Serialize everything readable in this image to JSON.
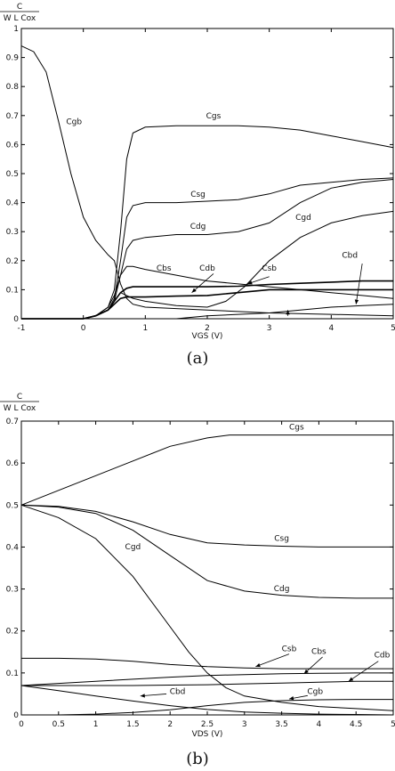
{
  "chart_data": [
    {
      "type": "line",
      "panel_label": "(a)",
      "ylabel_num": "C",
      "ylabel_den": "W L Cox",
      "xlabel": "VGS (V)",
      "xlim": [
        -1,
        5
      ],
      "ylim": [
        0,
        1
      ],
      "xticks": [
        -1,
        0,
        1,
        2,
        3,
        4,
        5
      ],
      "yticks": [
        0,
        0.1,
        0.2,
        0.3,
        0.4,
        0.5,
        0.6,
        0.7,
        0.8,
        0.9,
        1
      ],
      "xtick_labels": [
        "-1",
        "0",
        "1",
        "2",
        "3",
        "4",
        "5"
      ],
      "ytick_labels": [
        "0",
        "0.1",
        "0.2",
        "0.3",
        "0.4",
        "0.5",
        "0.6",
        "0.7",
        "0.8",
        "0.9",
        "1"
      ],
      "series": [
        {
          "name": "Cgb",
          "x": [
            -1,
            -0.8,
            -0.6,
            -0.4,
            -0.2,
            0,
            0.2,
            0.4,
            0.5,
            0.6,
            0.7,
            0.8,
            1,
            2,
            3,
            4,
            5
          ],
          "y": [
            0.94,
            0.92,
            0.85,
            0.68,
            0.5,
            0.35,
            0.27,
            0.22,
            0.2,
            0.12,
            0.07,
            0.05,
            0.04,
            0.03,
            0.02,
            0.015,
            0.01
          ]
        },
        {
          "name": "Cgs",
          "x": [
            -1,
            0,
            0.2,
            0.4,
            0.5,
            0.6,
            0.7,
            0.8,
            1,
            1.5,
            2,
            2.5,
            3,
            3.5,
            4,
            4.5,
            5
          ],
          "y": [
            0,
            0,
            0.01,
            0.04,
            0.1,
            0.3,
            0.55,
            0.64,
            0.66,
            0.665,
            0.665,
            0.665,
            0.66,
            0.65,
            0.63,
            0.61,
            0.59
          ]
        },
        {
          "name": "Csg",
          "x": [
            -1,
            0,
            0.2,
            0.4,
            0.5,
            0.6,
            0.7,
            0.8,
            1,
            1.5,
            2,
            2.5,
            3,
            3.5,
            4,
            4.5,
            5
          ],
          "y": [
            0,
            0,
            0.01,
            0.03,
            0.07,
            0.2,
            0.35,
            0.39,
            0.4,
            0.4,
            0.405,
            0.41,
            0.43,
            0.46,
            0.47,
            0.48,
            0.485
          ]
        },
        {
          "name": "Cdg",
          "x": [
            -1,
            0,
            0.2,
            0.4,
            0.5,
            0.6,
            0.7,
            0.8,
            1,
            1.5,
            2,
            2.5,
            3,
            3.5,
            4,
            4.5,
            5
          ],
          "y": [
            0,
            0,
            0.01,
            0.03,
            0.06,
            0.15,
            0.24,
            0.27,
            0.28,
            0.29,
            0.29,
            0.3,
            0.33,
            0.4,
            0.45,
            0.47,
            0.48
          ]
        },
        {
          "name": "Cgd",
          "x": [
            -1,
            0,
            0.2,
            0.4,
            0.5,
            0.6,
            0.7,
            0.8,
            1,
            1.5,
            2,
            2.3,
            2.6,
            3,
            3.5,
            4,
            4.5,
            5
          ],
          "y": [
            0,
            0,
            0.01,
            0.03,
            0.06,
            0.09,
            0.08,
            0.07,
            0.06,
            0.045,
            0.04,
            0.06,
            0.11,
            0.2,
            0.28,
            0.33,
            0.355,
            0.37
          ]
        },
        {
          "name": "Cbs",
          "x": [
            -1,
            0,
            0.2,
            0.4,
            0.5,
            0.6,
            0.7,
            0.8,
            1,
            1.5,
            2,
            2.5,
            3,
            3.5,
            4,
            4.5,
            5
          ],
          "y": [
            0,
            0,
            0.01,
            0.04,
            0.08,
            0.15,
            0.18,
            0.18,
            0.17,
            0.15,
            0.13,
            0.12,
            0.11,
            0.1,
            0.09,
            0.08,
            0.07
          ]
        },
        {
          "name": "Cdb",
          "x": [
            -1,
            0,
            0.2,
            0.4,
            0.5,
            0.6,
            0.7,
            0.8,
            1,
            1.5,
            2,
            2.5,
            3,
            3.5,
            4,
            4.5,
            5
          ],
          "y": [
            0,
            0,
            0.01,
            0.03,
            0.06,
            0.09,
            0.105,
            0.11,
            0.11,
            0.11,
            0.11,
            0.112,
            0.118,
            0.122,
            0.126,
            0.13,
            0.13
          ]
        },
        {
          "name": "Csb",
          "x": [
            -1,
            0,
            0.2,
            0.4,
            0.5,
            0.6,
            0.7,
            0.8,
            1,
            1.5,
            2,
            2.5,
            3,
            3.5,
            4,
            4.5,
            5
          ],
          "y": [
            0,
            0,
            0.01,
            0.03,
            0.05,
            0.07,
            0.075,
            0.075,
            0.075,
            0.078,
            0.08,
            0.09,
            0.1,
            0.1,
            0.1,
            0.1,
            0.1
          ]
        },
        {
          "name": "Cbd",
          "x": [
            -1,
            0,
            0.5,
            1,
            1.5,
            2,
            2.5,
            3,
            3.5,
            4,
            4.5,
            5
          ],
          "y": [
            0,
            0,
            0,
            0,
            0,
            0.01,
            0.015,
            0.02,
            0.03,
            0.04,
            0.045,
            0.05
          ]
        }
      ],
      "labels": [
        {
          "text": "Cgb",
          "x": -0.15,
          "y": 0.67
        },
        {
          "text": "Cgs",
          "x": 2.1,
          "y": 0.69
        },
        {
          "text": "Csg",
          "x": 1.85,
          "y": 0.42
        },
        {
          "text": "Cdg",
          "x": 1.85,
          "y": 0.31
        },
        {
          "text": "Cgd",
          "x": 3.55,
          "y": 0.34
        },
        {
          "text": "Cbs",
          "x": 1.3,
          "y": 0.165
        },
        {
          "text": "Cdb",
          "x": 2.0,
          "y": 0.165
        },
        {
          "text": "Csb",
          "x": 3.0,
          "y": 0.165
        },
        {
          "text": "Cbd",
          "x": 4.3,
          "y": 0.21
        }
      ],
      "arrows": [
        {
          "from": [
            2.1,
            0.155
          ],
          "to": [
            1.75,
            0.09
          ]
        },
        {
          "from": [
            3.0,
            0.145
          ],
          "to": [
            2.65,
            0.12
          ]
        },
        {
          "from": [
            4.5,
            0.19
          ],
          "to": [
            4.4,
            0.05
          ]
        },
        {
          "from": [
            3.3,
            0.01
          ],
          "to": [
            3.3,
            0.03
          ]
        }
      ]
    },
    {
      "type": "line",
      "panel_label": "(b)",
      "ylabel_num": "C",
      "ylabel_den": "W L Cox",
      "xlabel": "VDS (V)",
      "xlim": [
        0,
        5
      ],
      "ylim": [
        0,
        0.7
      ],
      "xticks": [
        0,
        0.5,
        1,
        1.5,
        2,
        2.5,
        3,
        3.5,
        4,
        4.5,
        5
      ],
      "yticks": [
        0,
        0.1,
        0.2,
        0.3,
        0.4,
        0.5,
        0.6,
        0.7
      ],
      "xtick_labels": [
        "0",
        "0.5",
        "1",
        "1.5",
        "2",
        "2.5",
        "3",
        "3.5",
        "4",
        "4.5",
        "5"
      ],
      "ytick_labels": [
        "0",
        "0.1",
        "0.2",
        "0.3",
        "0.4",
        "0.5",
        "0.6",
        "0.7"
      ],
      "series": [
        {
          "name": "Cgs",
          "x": [
            0,
            0.5,
            1,
            1.5,
            2,
            2.5,
            2.8,
            3,
            3.5,
            4,
            4.5,
            5
          ],
          "y": [
            0.5,
            0.535,
            0.57,
            0.605,
            0.64,
            0.66,
            0.667,
            0.667,
            0.667,
            0.667,
            0.667,
            0.667
          ]
        },
        {
          "name": "Csg",
          "x": [
            0,
            0.5,
            1,
            1.5,
            2,
            2.5,
            3,
            3.5,
            4,
            4.5,
            5
          ],
          "y": [
            0.5,
            0.497,
            0.485,
            0.46,
            0.43,
            0.41,
            0.405,
            0.402,
            0.4,
            0.4,
            0.4
          ]
        },
        {
          "name": "Cdg",
          "x": [
            0,
            0.5,
            1,
            1.5,
            2,
            2.5,
            3,
            3.5,
            4,
            4.5,
            5
          ],
          "y": [
            0.5,
            0.495,
            0.48,
            0.44,
            0.38,
            0.32,
            0.295,
            0.285,
            0.28,
            0.278,
            0.278
          ]
        },
        {
          "name": "Cgd",
          "x": [
            0,
            0.5,
            1,
            1.5,
            2,
            2.25,
            2.5,
            2.75,
            3,
            3.5,
            4,
            4.5,
            5
          ],
          "y": [
            0.5,
            0.47,
            0.42,
            0.33,
            0.21,
            0.15,
            0.1,
            0.065,
            0.045,
            0.03,
            0.02,
            0.015,
            0.01
          ]
        },
        {
          "name": "Csb",
          "x": [
            0,
            0.5,
            1,
            1.5,
            2,
            2.5,
            3,
            3.5,
            4,
            4.5,
            5
          ],
          "y": [
            0.135,
            0.135,
            0.133,
            0.128,
            0.12,
            0.115,
            0.112,
            0.11,
            0.11,
            0.11,
            0.11
          ]
        },
        {
          "name": "Cbs",
          "x": [
            0,
            0.5,
            1,
            1.5,
            2,
            2.5,
            3,
            3.5,
            4,
            4.5,
            5
          ],
          "y": [
            0.07,
            0.075,
            0.08,
            0.085,
            0.09,
            0.094,
            0.096,
            0.098,
            0.099,
            0.1,
            0.1
          ]
        },
        {
          "name": "Cdb",
          "x": [
            0,
            0.5,
            1,
            1.5,
            2,
            2.5,
            3,
            3.5,
            4,
            4.5,
            5
          ],
          "y": [
            0.07,
            0.07,
            0.07,
            0.07,
            0.071,
            0.072,
            0.074,
            0.076,
            0.078,
            0.08,
            0.08
          ]
        },
        {
          "name": "Cbd",
          "x": [
            0,
            0.5,
            1,
            1.5,
            2,
            2.5,
            3,
            3.5,
            4,
            4.5,
            5
          ],
          "y": [
            0.07,
            0.058,
            0.045,
            0.033,
            0.022,
            0.013,
            0.007,
            0.004,
            0.002,
            0.001,
            0.0
          ]
        },
        {
          "name": "Cgb",
          "x": [
            0,
            0.5,
            1,
            1.5,
            2,
            2.5,
            3,
            3.5,
            4,
            4.5,
            5
          ],
          "y": [
            0.0,
            0.0,
            0.002,
            0.006,
            0.012,
            0.022,
            0.03,
            0.034,
            0.036,
            0.037,
            0.037
          ]
        }
      ],
      "labels": [
        {
          "text": "Cgs",
          "x": 3.7,
          "y": 0.68
        },
        {
          "text": "Csg",
          "x": 3.5,
          "y": 0.415
        },
        {
          "text": "Cdg",
          "x": 3.5,
          "y": 0.295
        },
        {
          "text": "Cgd",
          "x": 1.5,
          "y": 0.395
        },
        {
          "text": "Csb",
          "x": 3.6,
          "y": 0.152
        },
        {
          "text": "Cbs",
          "x": 4.0,
          "y": 0.145
        },
        {
          "text": "Cdb",
          "x": 4.85,
          "y": 0.137
        },
        {
          "text": "Cbd",
          "x": 2.1,
          "y": 0.05
        },
        {
          "text": "Cgb",
          "x": 3.95,
          "y": 0.05
        }
      ],
      "arrows": [
        {
          "from": [
            3.6,
            0.145
          ],
          "to": [
            3.15,
            0.115
          ]
        },
        {
          "from": [
            4.05,
            0.138
          ],
          "to": [
            3.8,
            0.098
          ]
        },
        {
          "from": [
            4.8,
            0.128
          ],
          "to": [
            4.4,
            0.08
          ]
        },
        {
          "from": [
            1.95,
            0.05
          ],
          "to": [
            1.6,
            0.045
          ]
        },
        {
          "from": [
            3.85,
            0.046
          ],
          "to": [
            3.6,
            0.038
          ]
        }
      ]
    }
  ]
}
